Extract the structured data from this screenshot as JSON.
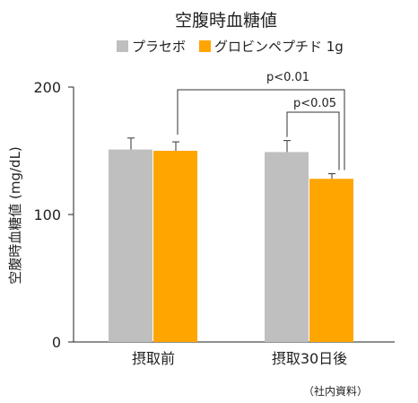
{
  "chart_data": {
    "type": "bar",
    "title": "空腹時血糖値",
    "ylabel": "空腹時血糖値 (mg/dL)",
    "xlabel": "",
    "ylim": [
      0,
      200
    ],
    "yticks": [
      0,
      100,
      200
    ],
    "categories": [
      "摂取前",
      "摂取30日後"
    ],
    "series": [
      {
        "name": "プラセボ",
        "color": "#BFBFBF",
        "values": [
          151,
          149
        ],
        "errors": [
          9,
          9
        ]
      },
      {
        "name": "グロビンペプチド 1g",
        "color": "#FFA500",
        "values": [
          150,
          128
        ],
        "errors": [
          7,
          4
        ]
      }
    ],
    "legend_position": "top",
    "grid": false,
    "annotations": [
      {
        "label": "p<0.01",
        "from": [
          0,
          1
        ],
        "to": [
          1,
          1
        ]
      },
      {
        "label": "p<0.05",
        "from": [
          1,
          0
        ],
        "to": [
          1,
          1
        ]
      }
    ],
    "source_note": "（社内資料）"
  }
}
